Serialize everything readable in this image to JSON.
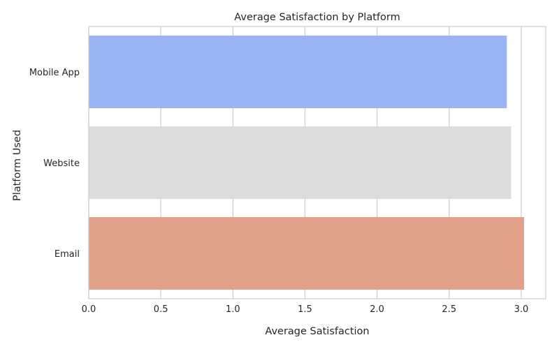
{
  "chart_data": {
    "type": "bar",
    "orientation": "horizontal",
    "title": "Average Satisfaction by Platform",
    "xlabel": "Average Satisfaction",
    "ylabel": "Platform Used",
    "categories": [
      "Mobile App",
      "Website",
      "Email"
    ],
    "values": [
      2.9,
      2.93,
      3.02
    ],
    "colors": [
      "#98b4f2",
      "#dcdcdc",
      "#e4a18a"
    ],
    "xlim": [
      0,
      3.17
    ],
    "xticks": [
      0.0,
      0.5,
      1.0,
      1.5,
      2.0,
      2.5,
      3.0
    ],
    "xtick_labels": [
      "0.0",
      "0.5",
      "1.0",
      "1.5",
      "2.0",
      "2.5",
      "3.0"
    ],
    "grid": true,
    "grid_axis": "x",
    "legend": "none"
  }
}
